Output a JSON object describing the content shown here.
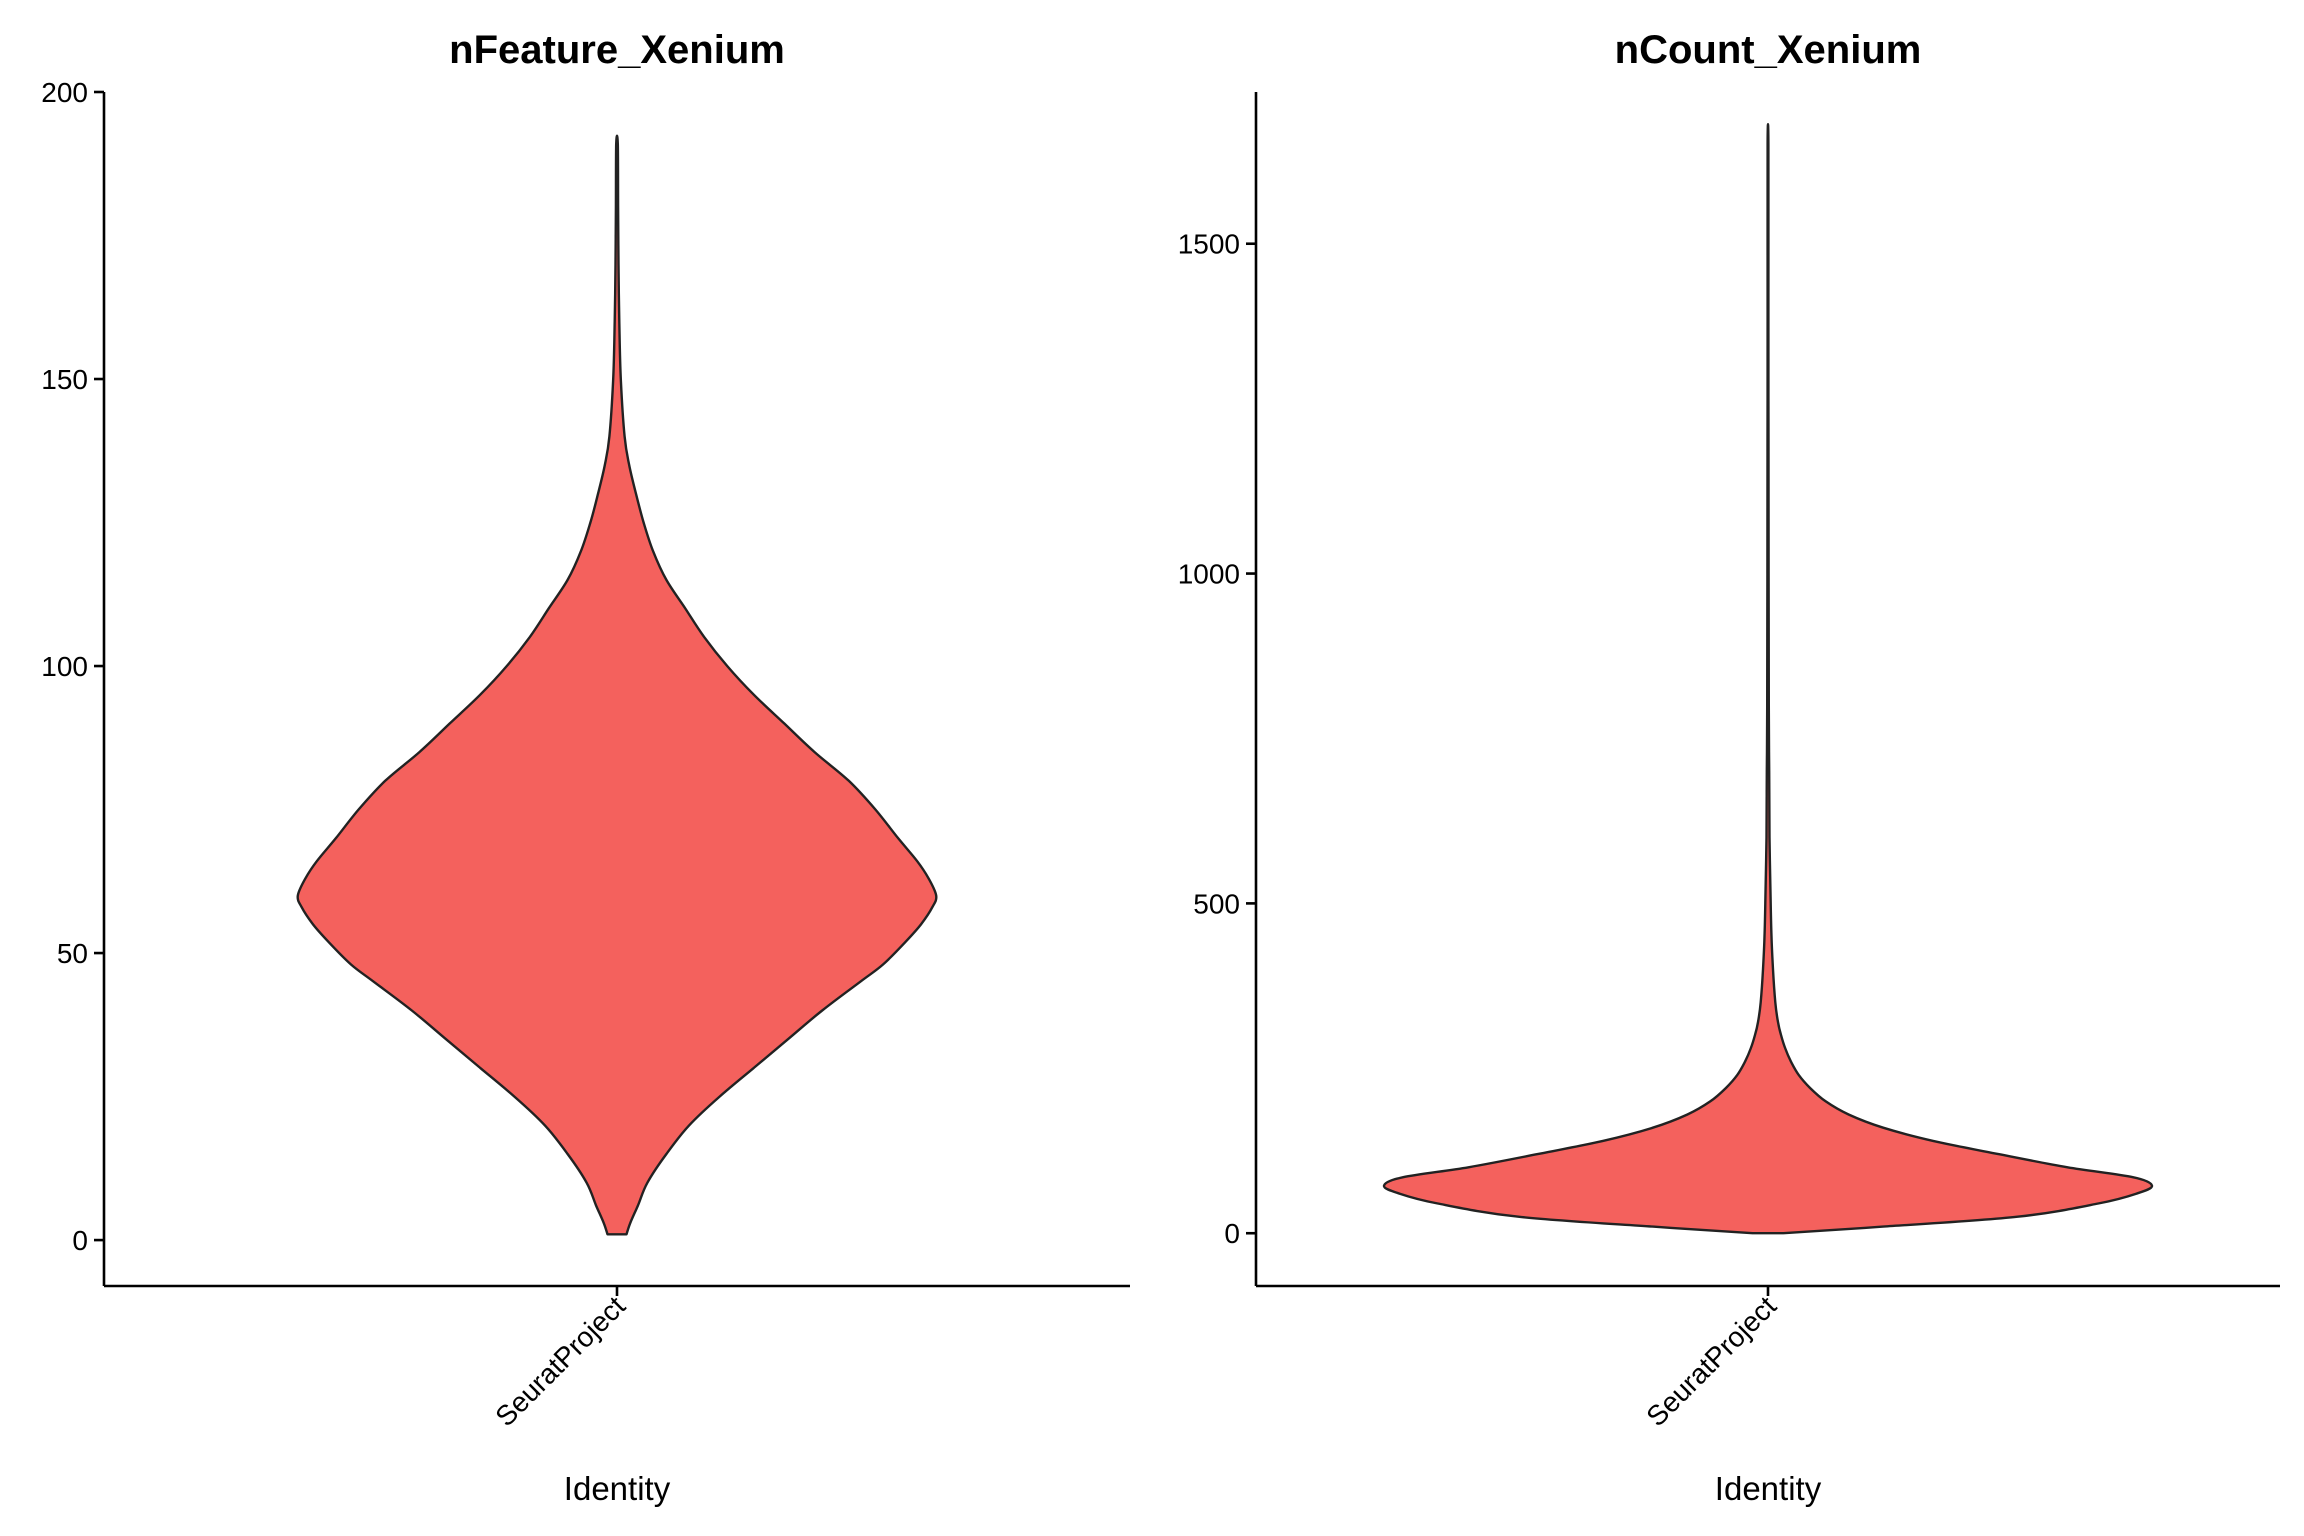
{
  "chart_data": [
    {
      "type": "violin",
      "title": "nFeature_Xenium",
      "xlabel": "Identity",
      "ylabel": "",
      "categories": [
        "SeuratProject"
      ],
      "ylim": [
        -8,
        200
      ],
      "yticks": [
        0,
        50,
        100,
        150,
        200
      ],
      "fill": "#F4615D",
      "grid": false,
      "density_half_width": [
        [
          1,
          0.025
        ],
        [
          3,
          0.035
        ],
        [
          6,
          0.055
        ],
        [
          10,
          0.08
        ],
        [
          15,
          0.13
        ],
        [
          20,
          0.19
        ],
        [
          25,
          0.27
        ],
        [
          30,
          0.36
        ],
        [
          35,
          0.45
        ],
        [
          40,
          0.54
        ],
        [
          45,
          0.64
        ],
        [
          48,
          0.7
        ],
        [
          52,
          0.76
        ],
        [
          55,
          0.8
        ],
        [
          58,
          0.83
        ],
        [
          60,
          0.84
        ],
        [
          63,
          0.82
        ],
        [
          66,
          0.79
        ],
        [
          70,
          0.74
        ],
        [
          75,
          0.68
        ],
        [
          80,
          0.61
        ],
        [
          85,
          0.52
        ],
        [
          90,
          0.44
        ],
        [
          95,
          0.36
        ],
        [
          100,
          0.29
        ],
        [
          105,
          0.23
        ],
        [
          110,
          0.18
        ],
        [
          115,
          0.13
        ],
        [
          120,
          0.095
        ],
        [
          125,
          0.07
        ],
        [
          130,
          0.05
        ],
        [
          135,
          0.032
        ],
        [
          140,
          0.02
        ],
        [
          150,
          0.01
        ],
        [
          160,
          0.006
        ],
        [
          170,
          0.004
        ],
        [
          180,
          0.003
        ],
        [
          191,
          0.002
        ]
      ]
    },
    {
      "type": "violin",
      "title": "nCount_Xenium",
      "xlabel": "Identity",
      "ylabel": "",
      "categories": [
        "SeuratProject"
      ],
      "ylim": [
        -80,
        1730
      ],
      "yticks": [
        0,
        500,
        1000,
        1500
      ],
      "fill": "#F4615D",
      "grid": false,
      "density_half_width": [
        [
          0,
          0.04
        ],
        [
          10,
          0.3
        ],
        [
          25,
          0.65
        ],
        [
          45,
          0.86
        ],
        [
          60,
          0.96
        ],
        [
          72,
          1.0
        ],
        [
          85,
          0.95
        ],
        [
          100,
          0.78
        ],
        [
          120,
          0.6
        ],
        [
          140,
          0.43
        ],
        [
          160,
          0.3
        ],
        [
          180,
          0.21
        ],
        [
          200,
          0.15
        ],
        [
          220,
          0.11
        ],
        [
          240,
          0.08
        ],
        [
          260,
          0.06
        ],
        [
          280,
          0.045
        ],
        [
          300,
          0.034
        ],
        [
          320,
          0.026
        ],
        [
          350,
          0.019
        ],
        [
          400,
          0.013
        ],
        [
          450,
          0.009
        ],
        [
          500,
          0.007
        ],
        [
          600,
          0.004
        ],
        [
          700,
          0.003
        ],
        [
          800,
          0.002
        ],
        [
          1000,
          0.0016
        ],
        [
          1200,
          0.0012
        ],
        [
          1400,
          0.001
        ],
        [
          1650,
          0.001
        ]
      ]
    }
  ]
}
